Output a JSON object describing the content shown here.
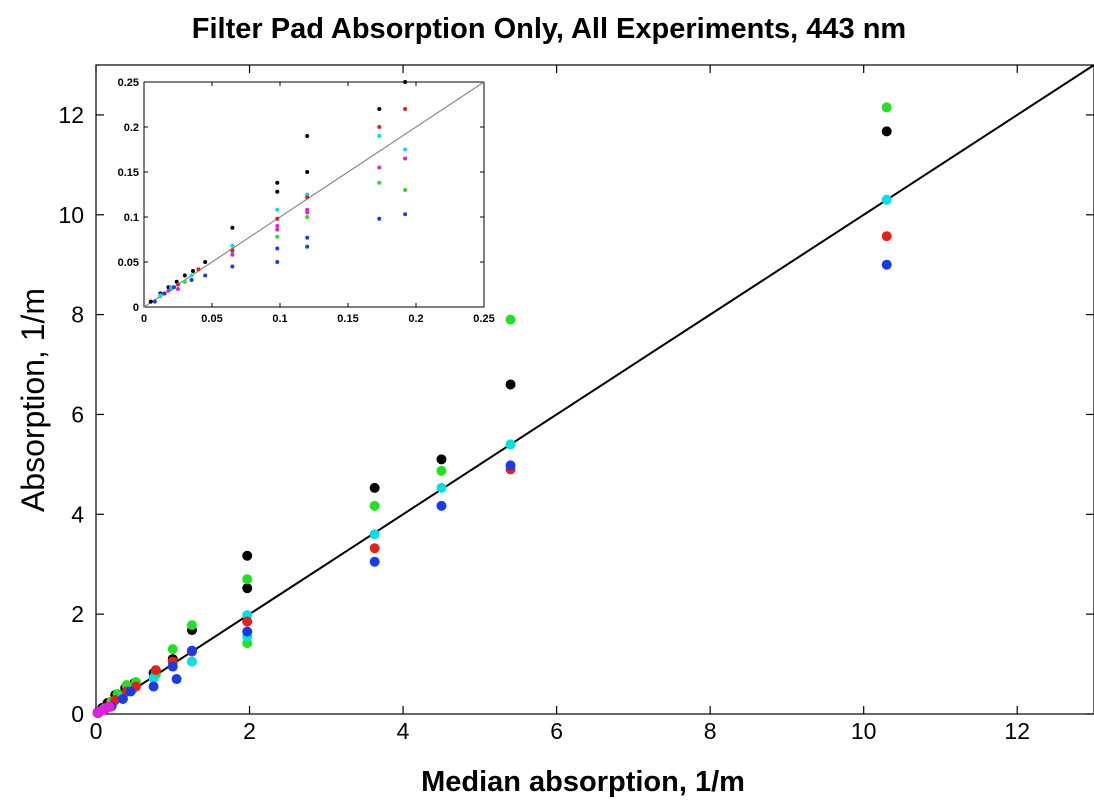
{
  "chart_data": [
    {
      "type": "scatter",
      "title": "Filter Pad Absorption Only, All Experiments, 443 nm",
      "xlabel": "Median absorption, 1/m",
      "ylabel": "Absorption, 1/m",
      "xlim": [
        0,
        13
      ],
      "ylim": [
        0,
        13
      ],
      "xticks": [
        "0",
        "2",
        "4",
        "6",
        "8",
        "10",
        "12"
      ],
      "yticks": [
        "0",
        "2",
        "4",
        "6",
        "8",
        "10",
        "12"
      ],
      "grid": false,
      "reference_line": {
        "type": "1:1",
        "color": "#000000"
      },
      "series": [
        {
          "color": "#000000",
          "points": [
            [
              0.02,
              0.03
            ],
            [
              0.08,
              0.12
            ],
            [
              0.15,
              0.22
            ],
            [
              0.25,
              0.38
            ],
            [
              0.38,
              0.52
            ],
            [
              0.5,
              0.62
            ],
            [
              0.75,
              0.82
            ],
            [
              1.0,
              1.1
            ],
            [
              1.25,
              1.68
            ],
            [
              1.97,
              3.17
            ],
            [
              1.97,
              2.52
            ],
            [
              3.63,
              4.53
            ],
            [
              4.5,
              5.1
            ],
            [
              5.4,
              6.6
            ],
            [
              10.3,
              11.67
            ]
          ]
        },
        {
          "color": "#22e022",
          "points": [
            [
              0.02,
              0.02
            ],
            [
              0.1,
              0.1
            ],
            [
              0.2,
              0.25
            ],
            [
              0.28,
              0.4
            ],
            [
              0.4,
              0.58
            ],
            [
              0.52,
              0.64
            ],
            [
              0.78,
              0.8
            ],
            [
              1.0,
              1.3
            ],
            [
              1.25,
              1.78
            ],
            [
              1.97,
              2.7
            ],
            [
              1.97,
              1.42
            ],
            [
              3.63,
              4.17
            ],
            [
              4.5,
              4.87
            ],
            [
              5.4,
              7.9
            ],
            [
              10.3,
              12.15
            ]
          ]
        },
        {
          "color": "#00e0e0",
          "points": [
            [
              0.03,
              0.03
            ],
            [
              0.12,
              0.12
            ],
            [
              0.22,
              0.2
            ],
            [
              0.35,
              0.35
            ],
            [
              0.48,
              0.5
            ],
            [
              0.75,
              0.72
            ],
            [
              1.0,
              1.0
            ],
            [
              1.25,
              1.05
            ],
            [
              1.97,
              1.98
            ],
            [
              1.97,
              1.55
            ],
            [
              3.63,
              3.6
            ],
            [
              4.5,
              4.53
            ],
            [
              5.4,
              5.4
            ],
            [
              10.3,
              10.3
            ]
          ]
        },
        {
          "color": "#e8201a",
          "points": [
            [
              0.04,
              0.04
            ],
            [
              0.15,
              0.14
            ],
            [
              0.25,
              0.28
            ],
            [
              0.4,
              0.45
            ],
            [
              0.52,
              0.55
            ],
            [
              0.78,
              0.88
            ],
            [
              1.0,
              1.05
            ],
            [
              1.25,
              1.25
            ],
            [
              1.97,
              1.85
            ],
            [
              3.63,
              3.32
            ],
            [
              5.4,
              4.9
            ],
            [
              10.3,
              9.57
            ]
          ]
        },
        {
          "color": "#1a3be8",
          "points": [
            [
              0.03,
              0.02
            ],
            [
              0.1,
              0.08
            ],
            [
              0.2,
              0.15
            ],
            [
              0.35,
              0.3
            ],
            [
              0.45,
              0.45
            ],
            [
              0.75,
              0.55
            ],
            [
              1.0,
              0.95
            ],
            [
              1.05,
              0.7
            ],
            [
              1.25,
              1.27
            ],
            [
              1.97,
              1.65
            ],
            [
              3.63,
              3.05
            ],
            [
              4.5,
              4.17
            ],
            [
              5.4,
              4.98
            ],
            [
              10.3,
              9.0
            ]
          ]
        },
        {
          "color": "#e020e0",
          "points": [
            [
              0.02,
              0.02
            ],
            [
              0.05,
              0.05
            ],
            [
              0.08,
              0.07
            ],
            [
              0.12,
              0.1
            ],
            [
              0.18,
              0.14
            ]
          ]
        }
      ]
    },
    {
      "type": "scatter",
      "title": "",
      "xlim": [
        0,
        0.25
      ],
      "ylim": [
        0,
        0.25
      ],
      "xticks": [
        "0",
        "0.05",
        "0.1",
        "0.15",
        "0.2",
        "0.25"
      ],
      "yticks": [
        "0",
        "0.05",
        "0.1",
        "0.15",
        "0.2",
        "0.25"
      ],
      "grid": false,
      "reference_line": {
        "type": "1:1",
        "color": "#888888"
      },
      "series": [
        {
          "color": "#000000",
          "points": [
            [
              0.005,
              0.006
            ],
            [
              0.012,
              0.015
            ],
            [
              0.018,
              0.022
            ],
            [
              0.024,
              0.028
            ],
            [
              0.03,
              0.035
            ],
            [
              0.036,
              0.04
            ],
            [
              0.045,
              0.05
            ],
            [
              0.065,
              0.088
            ],
            [
              0.098,
              0.128
            ],
            [
              0.098,
              0.138
            ],
            [
              0.12,
              0.15
            ],
            [
              0.12,
              0.19
            ],
            [
              0.173,
              0.22
            ],
            [
              0.192,
              0.25
            ]
          ]
        },
        {
          "color": "#22e022",
          "points": [
            [
              0.012,
              0.012
            ],
            [
              0.02,
              0.02
            ],
            [
              0.03,
              0.028
            ],
            [
              0.065,
              0.062
            ],
            [
              0.098,
              0.078
            ],
            [
              0.12,
              0.1
            ],
            [
              0.173,
              0.138
            ],
            [
              0.192,
              0.13
            ]
          ]
        },
        {
          "color": "#00e0e0",
          "points": [
            [
              0.012,
              0.013
            ],
            [
              0.02,
              0.022
            ],
            [
              0.035,
              0.035
            ],
            [
              0.065,
              0.068
            ],
            [
              0.098,
              0.108
            ],
            [
              0.12,
              0.125
            ],
            [
              0.173,
              0.19
            ],
            [
              0.192,
              0.175
            ]
          ]
        },
        {
          "color": "#e8201a",
          "points": [
            [
              0.015,
              0.015
            ],
            [
              0.025,
              0.025
            ],
            [
              0.04,
              0.042
            ],
            [
              0.065,
              0.063
            ],
            [
              0.098,
              0.098
            ],
            [
              0.12,
              0.122
            ],
            [
              0.173,
              0.2
            ],
            [
              0.192,
              0.22
            ]
          ]
        },
        {
          "color": "#e020e0",
          "points": [
            [
              0.018,
              0.018
            ],
            [
              0.025,
              0.02
            ],
            [
              0.065,
              0.058
            ],
            [
              0.098,
              0.09
            ],
            [
              0.098,
              0.086
            ],
            [
              0.12,
              0.105
            ],
            [
              0.12,
              0.108
            ],
            [
              0.173,
              0.155
            ],
            [
              0.192,
              0.165
            ]
          ]
        },
        {
          "color": "#1a3be8",
          "points": [
            [
              0.008,
              0.006
            ],
            [
              0.015,
              0.015
            ],
            [
              0.022,
              0.022
            ],
            [
              0.035,
              0.03
            ],
            [
              0.045,
              0.035
            ],
            [
              0.065,
              0.045
            ],
            [
              0.098,
              0.05
            ],
            [
              0.098,
              0.065
            ],
            [
              0.12,
              0.067
            ],
            [
              0.12,
              0.077
            ],
            [
              0.173,
              0.098
            ],
            [
              0.192,
              0.103
            ]
          ]
        }
      ]
    }
  ]
}
